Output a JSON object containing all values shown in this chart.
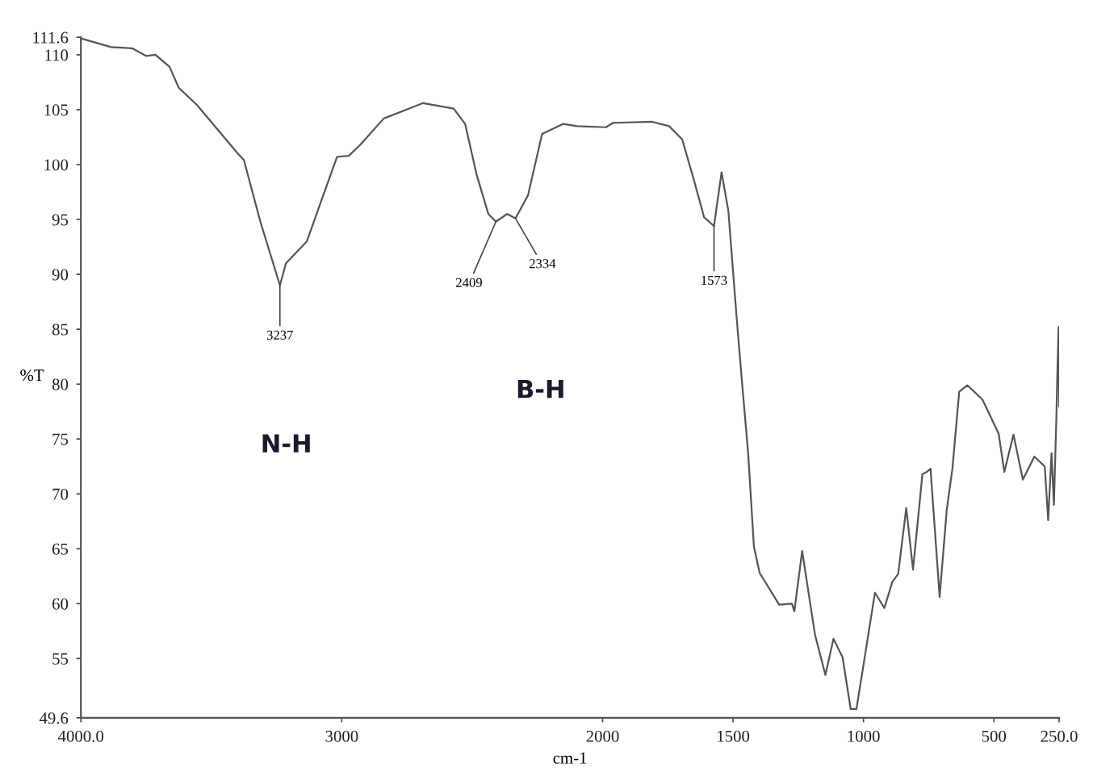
{
  "chart_data": {
    "type": "line",
    "xlabel": "cm-1",
    "ylabel": "%T",
    "xlim": [
      4000,
      250
    ],
    "ylim": [
      49.6,
      111.6
    ],
    "xticks": [
      {
        "value": 4000,
        "label": "4000.0"
      },
      3000,
      2000,
      1500,
      1000,
      500,
      {
        "value": 250,
        "label": "250.0"
      }
    ],
    "yticks": [
      49.6,
      55,
      60,
      65,
      70,
      75,
      80,
      85,
      90,
      95,
      100,
      105,
      110,
      111.6
    ],
    "grid": false,
    "marker": "none",
    "line_style": "solid",
    "series": [
      {
        "color": "#555555",
        "x": [
          4000,
          3884,
          3804,
          3750,
          3714,
          3660,
          3625,
          3554,
          3402,
          3375,
          3312,
          3237,
          3214,
          3134,
          3080,
          3018,
          2973,
          2929,
          2839,
          2688,
          2571,
          2527,
          2482,
          2438,
          2409,
          2366,
          2334,
          2286,
          2232,
          2152,
          2098,
          1987,
          1960,
          1810,
          1745,
          1695,
          1650,
          1611,
          1573,
          1544,
          1518,
          1487,
          1465,
          1442,
          1420,
          1398,
          1323,
          1274,
          1265,
          1235,
          1208,
          1186,
          1146,
          1115,
          1080,
          1049,
          1027,
          1000,
          956,
          920,
          889,
          867,
          836,
          810,
          774,
          757,
          743,
          708,
          681,
          659,
          633,
          602,
          544,
          482,
          460,
          425,
          389,
          345,
          305,
          292,
          279,
          270,
          261,
          257,
          252,
          250
        ],
        "values": [
          111.5,
          110.7,
          110.6,
          109.9,
          110.0,
          108.9,
          107.0,
          105.4,
          101.1,
          100.4,
          94.8,
          89.0,
          91.0,
          93.0,
          96.6,
          100.7,
          100.8,
          101.8,
          104.2,
          105.6,
          105.1,
          103.7,
          99.0,
          95.5,
          94.8,
          95.5,
          95.1,
          97.2,
          102.8,
          103.7,
          103.5,
          103.4,
          103.8,
          103.9,
          103.5,
          102.3,
          98.6,
          95.2,
          94.4,
          99.3,
          95.8,
          86.3,
          80.0,
          73.7,
          65.2,
          62.8,
          59.9,
          60.0,
          59.3,
          64.8,
          60.6,
          57.2,
          53.5,
          56.8,
          55.1,
          50.4,
          50.4,
          54.4,
          61.0,
          59.6,
          62.0,
          62.7,
          68.7,
          63.1,
          71.8,
          72.0,
          72.3,
          60.6,
          68.5,
          72.3,
          79.3,
          79.9,
          78.6,
          75.5,
          72.0,
          75.4,
          71.3,
          73.4,
          72.5,
          67.6,
          73.7,
          69.0,
          76.5,
          80.7,
          85.2,
          78.0
        ]
      }
    ],
    "annotations": [
      {
        "text": "3237",
        "x": 3237,
        "y": 89.0
      },
      {
        "text": "2409",
        "x": 2409,
        "y": 94.8
      },
      {
        "text": "2334",
        "x": 2334,
        "y": 95.1
      },
      {
        "text": "1573",
        "x": 1573,
        "y": 94.4
      },
      "N-H",
      "B-H"
    ]
  }
}
